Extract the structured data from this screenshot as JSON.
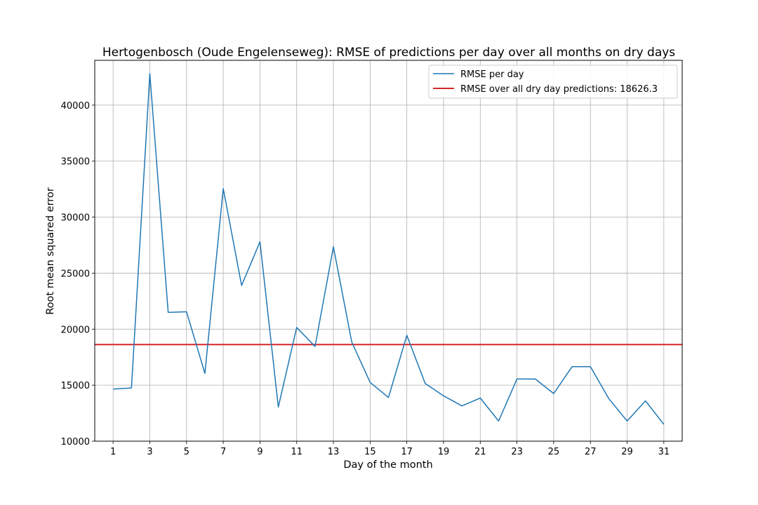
{
  "chart_data": {
    "type": "line",
    "title": "Hertogenbosch (Oude Engelenseweg): RMSE of predictions per day over all months on dry days",
    "xlabel": "Day of the month",
    "ylabel": "Root mean squared error",
    "xlim": [
      0,
      32
    ],
    "ylim": [
      10000,
      44000
    ],
    "xticks": [
      1,
      3,
      5,
      7,
      9,
      11,
      13,
      15,
      17,
      19,
      21,
      23,
      25,
      27,
      29,
      31
    ],
    "xtick_labels": [
      "1",
      "3",
      "5",
      "7",
      "9",
      "11",
      "13",
      "15",
      "17",
      "19",
      "21",
      "23",
      "25",
      "27",
      "29",
      "31"
    ],
    "yticks": [
      10000,
      15000,
      20000,
      25000,
      30000,
      35000,
      40000
    ],
    "ytick_labels": [
      "10000",
      "15000",
      "20000",
      "25000",
      "30000",
      "35000",
      "40000"
    ],
    "grid": true,
    "legend_position": "top-right",
    "x": [
      1,
      2,
      3,
      4,
      5,
      6,
      7,
      8,
      9,
      10,
      11,
      12,
      13,
      14,
      15,
      16,
      17,
      18,
      19,
      20,
      21,
      22,
      23,
      24,
      25,
      26,
      27,
      28,
      29,
      30,
      31
    ],
    "series": [
      {
        "name": "RMSE per day",
        "color": "#1f77b4",
        "values": [
          14650,
          14750,
          42800,
          21500,
          21550,
          16050,
          32550,
          23900,
          27800,
          13050,
          20150,
          18450,
          27350,
          18850,
          15250,
          13900,
          19450,
          15150,
          14050,
          13150,
          13850,
          11800,
          15550,
          15550,
          14250,
          16650,
          16650,
          13800,
          11800,
          13600,
          11500
        ]
      }
    ],
    "reference_line": {
      "name": "RMSE over all dry day predictions: 18626.3",
      "value": 18626.3,
      "color": "#d62728"
    }
  }
}
